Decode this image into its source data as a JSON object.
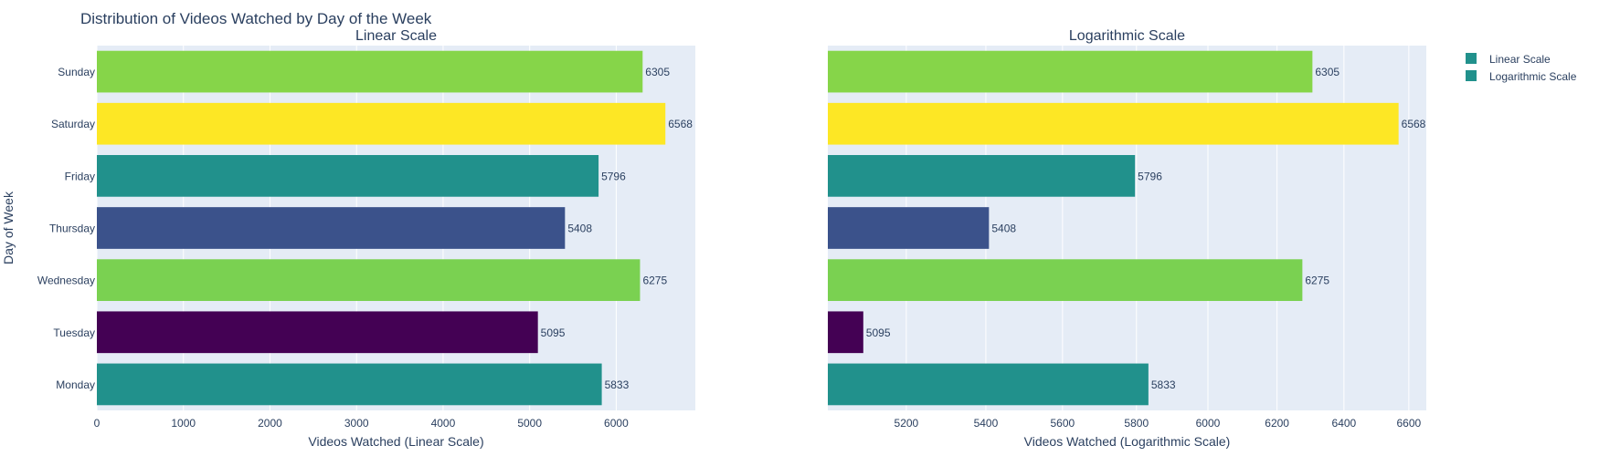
{
  "figure": {
    "title": "Distribution of Videos Watched by Day of the Week"
  },
  "legend": {
    "items": [
      {
        "label": "Linear Scale",
        "color": "#21918c"
      },
      {
        "label": "Logarithmic Scale",
        "color": "#21918c"
      }
    ]
  },
  "colors": {
    "plot_bg": "#e5ecf6",
    "grid": "#ffffff",
    "text": "#2a3f5f"
  },
  "chart_data": [
    {
      "type": "bar",
      "orientation": "horizontal",
      "title": "Linear Scale",
      "xlabel": "Videos Watched (Linear Scale)",
      "ylabel": "Day of Week",
      "xscale": "linear",
      "xlim": [
        0,
        6914
      ],
      "xticks": [
        0,
        1000,
        2000,
        3000,
        4000,
        5000,
        6000
      ],
      "grid": true,
      "categories": [
        "Monday",
        "Tuesday",
        "Wednesday",
        "Thursday",
        "Friday",
        "Saturday",
        "Sunday"
      ],
      "values": [
        5833,
        5095,
        6275,
        5408,
        5796,
        6568,
        6305
      ],
      "bar_colors": [
        "#21918c",
        "#440154",
        "#7ad151",
        "#3b528b",
        "#21918c",
        "#fde725",
        "#86d549"
      ],
      "data_labels": [
        "5833",
        "5095",
        "6275",
        "5408",
        "5796",
        "6568",
        "6305"
      ]
    },
    {
      "type": "bar",
      "orientation": "horizontal",
      "title": "Logarithmic Scale",
      "xlabel": "Videos Watched (Logarithmic Scale)",
      "ylabel": "",
      "xscale": "log",
      "xlim": [
        5010,
        6655
      ],
      "xticks": [
        5200,
        5400,
        5600,
        5800,
        6000,
        6200,
        6400,
        6600
      ],
      "grid": true,
      "categories": [
        "Monday",
        "Tuesday",
        "Wednesday",
        "Thursday",
        "Friday",
        "Saturday",
        "Sunday"
      ],
      "values": [
        5833,
        5095,
        6275,
        5408,
        5796,
        6568,
        6305
      ],
      "bar_colors": [
        "#21918c",
        "#440154",
        "#7ad151",
        "#3b528b",
        "#21918c",
        "#fde725",
        "#86d549"
      ],
      "data_labels": [
        "5833",
        "5095",
        "6275",
        "5408",
        "5796",
        "6568",
        "6305"
      ]
    }
  ]
}
